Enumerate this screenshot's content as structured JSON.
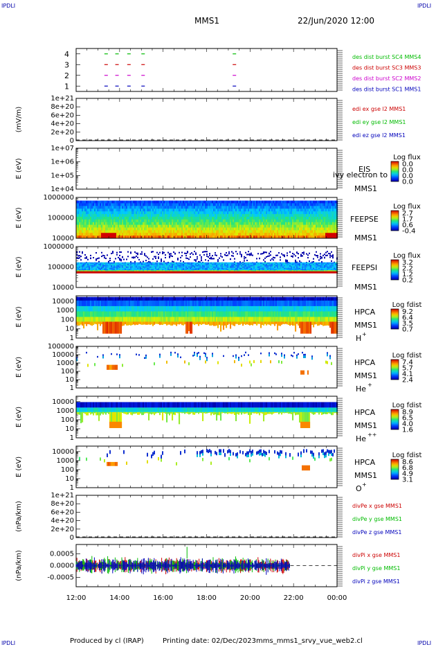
{
  "header": {
    "corner_label": "IPDLI",
    "title": "MMS1",
    "datetime": "22/Jun/2020 12:00"
  },
  "footer": {
    "credit": "Produced by cl (IRAP)",
    "printing_date": "Printing date: 02/Dec/2023",
    "filename": "mms_mms1_srvy_vue_web2.cl"
  },
  "colors": {
    "sc1": "#0000bb",
    "sc2": "#cc00cc",
    "sc3": "#cc0000",
    "sc4": "#00bb00",
    "x": "#cc0000",
    "y": "#00bb00",
    "z": "#0000bb"
  },
  "chart_data": [
    {
      "id": "burst",
      "type": "scatter",
      "ylabel": "",
      "yticks": [
        "1",
        "2",
        "3",
        "4"
      ],
      "ylim": [
        0.5,
        4.5
      ],
      "series": [
        {
          "name": "des dist burst SC1 MMS1",
          "color": "#0000bb",
          "y": 1,
          "x": [
            13.3,
            13.8,
            14.35,
            15.0,
            19.2
          ]
        },
        {
          "name": "des dist burst SC2 MMS2",
          "color": "#cc00cc",
          "y": 2,
          "x": [
            13.3,
            13.8,
            14.35,
            15.0,
            19.2
          ]
        },
        {
          "name": "des dist burst SC3 MMS3",
          "color": "#cc0000",
          "y": 3,
          "x": [
            13.3,
            13.8,
            14.35,
            15.0,
            19.2
          ]
        },
        {
          "name": "des dist burst SC4 MMS4",
          "color": "#00bb00",
          "y": 4,
          "x": [
            13.3,
            13.8,
            14.35,
            15.0,
            19.2
          ]
        }
      ]
    },
    {
      "id": "edi",
      "type": "line",
      "ylabel": "(mV/m)",
      "yticks": [
        "0",
        "2e+20",
        "4e+20",
        "6e+20",
        "8e+20",
        "1e+21"
      ],
      "ylim": [
        0,
        1e+21
      ],
      "series": [
        {
          "name": "edi ex gse l2 MMS1",
          "color": "#cc0000"
        },
        {
          "name": "edi ey gse l2 MMS1",
          "color": "#00bb00"
        },
        {
          "name": "edi ez gse l2 MMS1",
          "color": "#0000bb"
        }
      ]
    },
    {
      "id": "eis",
      "type": "heatmap",
      "ylabel": "E (eV)",
      "yticks": [
        "1e+04",
        "1e+05",
        "1e+06",
        "1e+07"
      ],
      "ylim": [
        10000,
        10000000
      ],
      "instrument": "EIS",
      "spacecraft": "MMS1",
      "species": "ivy electron to",
      "colorbar_title": "Log flux",
      "colorbar_ticks": [
        "0.0",
        "0.0",
        "0.0",
        "0.0"
      ]
    },
    {
      "id": "feepse",
      "type": "heatmap",
      "ylabel": "E (eV)",
      "yticks": [
        "10000",
        "100000",
        "1000000"
      ],
      "ylim": [
        10000,
        1000000
      ],
      "instrument": "FEEPSE",
      "spacecraft": "MMS1",
      "colorbar_title": "Log flux",
      "colorbar_ticks": [
        "2.7",
        "1.7",
        "0.6",
        "-0.4"
      ]
    },
    {
      "id": "feepsi",
      "type": "heatmap",
      "ylabel": "E (eV)",
      "yticks": [
        "10000",
        "100000",
        "1000000"
      ],
      "ylim": [
        10000,
        1000000
      ],
      "instrument": "FEEPSI",
      "spacecraft": "MMS1",
      "colorbar_title": "Log flux",
      "colorbar_ticks": [
        "3.2",
        "2.2",
        "1.2",
        "0.2"
      ]
    },
    {
      "id": "hpca_h",
      "type": "heatmap",
      "ylabel": "E (eV)",
      "yticks": [
        "1",
        "10",
        "100",
        "1000",
        "10000"
      ],
      "ylim": [
        1,
        40000
      ],
      "instrument": "HPCA",
      "spacecraft": "MMS1",
      "species": "H",
      "charge": "+",
      "colorbar_title": "Log fdist",
      "colorbar_ticks": [
        "9.2",
        "6.4",
        "3.5",
        "0.7"
      ]
    },
    {
      "id": "hpca_he1",
      "type": "heatmap",
      "ylabel": "E (eV)",
      "yticks": [
        "1",
        "10",
        "100",
        "1000",
        "10000",
        "100000"
      ],
      "ylim": [
        1,
        100000
      ],
      "instrument": "HPCA",
      "spacecraft": "MMS1",
      "species": "He",
      "charge": "+",
      "colorbar_title": "Log fdist",
      "colorbar_ticks": [
        "7.4",
        "5.7",
        "4.1",
        "2.4"
      ]
    },
    {
      "id": "hpca_he2",
      "type": "heatmap",
      "ylabel": "E (eV)",
      "yticks": [
        "1",
        "10",
        "100",
        "1000",
        "10000"
      ],
      "ylim": [
        1,
        40000
      ],
      "instrument": "HPCA",
      "spacecraft": "MMS1",
      "species": "He",
      "charge": "++",
      "colorbar_title": "Log fdist",
      "colorbar_ticks": [
        "8.9",
        "6.5",
        "4.0",
        "1.6"
      ]
    },
    {
      "id": "hpca_o",
      "type": "heatmap",
      "ylabel": "E (eV)",
      "yticks": [
        "1",
        "10",
        "100",
        "1000",
        "10000"
      ],
      "ylim": [
        1,
        40000
      ],
      "instrument": "HPCA",
      "spacecraft": "MMS1",
      "species": "O",
      "charge": "+",
      "colorbar_title": "Log fdist",
      "colorbar_ticks": [
        "8.6",
        "6.8",
        "4.9",
        "3.1"
      ]
    },
    {
      "id": "divpe",
      "type": "line",
      "ylabel": "(nPa/km)",
      "yticks": [
        "0",
        "2e+20",
        "4e+20",
        "6e+20",
        "8e+20",
        "1e+21"
      ],
      "ylim": [
        0,
        1e+21
      ],
      "series": [
        {
          "name": "divPe x gse MMS1",
          "color": "#cc0000"
        },
        {
          "name": "divPe y gse MMS1",
          "color": "#00bb00"
        },
        {
          "name": "divPe z gse MMS1",
          "color": "#0000bb"
        }
      ]
    },
    {
      "id": "divpi",
      "type": "line",
      "ylabel": "(nPa/km)",
      "yticks": [
        "-0.0005",
        "0.0000",
        "0.0005"
      ],
      "ylim": [
        -0.0009,
        0.0009
      ],
      "x_end": 21.85,
      "series": [
        {
          "name": "divPi x gse MMS1",
          "color": "#cc0000"
        },
        {
          "name": "divPi y gse MMS1",
          "color": "#00bb00"
        },
        {
          "name": "divPi z gse MMS1",
          "color": "#0000bb"
        }
      ]
    }
  ],
  "xaxis": {
    "ticks": [
      "12:00",
      "14:00",
      "16:00",
      "18:00",
      "20:00",
      "22:00",
      "00:00"
    ],
    "range_hours": [
      12,
      24
    ]
  }
}
